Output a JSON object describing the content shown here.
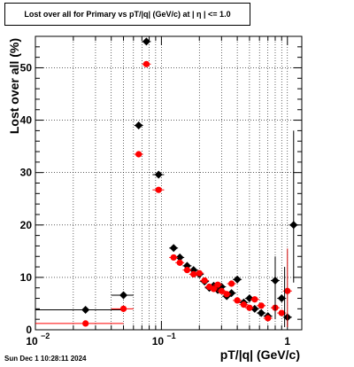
{
  "chart_data": {
    "type": "scatter",
    "title": "Lost over all for Primary vs pT/|q| (GeV/c) at |  η  | <= 1.0",
    "xlabel": "pT/|q| (GeV/c)",
    "ylabel": "Lost over all (%)",
    "x_scale": "log",
    "xlim": [
      0.01,
      1.3
    ],
    "ylim": [
      0,
      56
    ],
    "grid": true,
    "x_ticks": [
      {
        "value": 0.01,
        "label": "10",
        "exponent": "−2"
      },
      {
        "value": 0.1,
        "label": "10",
        "exponent": "−1"
      },
      {
        "value": 1,
        "label": "1",
        "exponent": ""
      }
    ],
    "y_ticks": [
      0,
      10,
      20,
      30,
      40,
      50
    ],
    "series": [
      {
        "color": "#000000",
        "marker": "diamond",
        "points": [
          {
            "x": 0.025,
            "y": 3.8,
            "xlo": 0.01,
            "xhi": 0.05
          },
          {
            "x": 0.05,
            "y": 6.6,
            "xlo": 0.04,
            "xhi": 0.06
          },
          {
            "x": 0.066,
            "y": 39.0
          },
          {
            "x": 0.076,
            "y": 55.0
          },
          {
            "x": 0.095,
            "y": 29.6,
            "xlo": 0.085,
            "xhi": 0.105
          },
          {
            "x": 0.125,
            "y": 15.6
          },
          {
            "x": 0.14,
            "y": 13.8
          },
          {
            "x": 0.16,
            "y": 12.2
          },
          {
            "x": 0.18,
            "y": 11.4
          },
          {
            "x": 0.2,
            "y": 10.6
          },
          {
            "x": 0.22,
            "y": 9.2
          },
          {
            "x": 0.24,
            "y": 8.0
          },
          {
            "x": 0.26,
            "y": 8.4
          },
          {
            "x": 0.28,
            "y": 7.6
          },
          {
            "x": 0.3,
            "y": 8.2
          },
          {
            "x": 0.33,
            "y": 6.4
          },
          {
            "x": 0.36,
            "y": 7.0
          },
          {
            "x": 0.4,
            "y": 9.6
          },
          {
            "x": 0.45,
            "y": 5.2
          },
          {
            "x": 0.5,
            "y": 6.0
          },
          {
            "x": 0.55,
            "y": 4.0
          },
          {
            "x": 0.62,
            "y": 3.2
          },
          {
            "x": 0.7,
            "y": 2.6
          },
          {
            "x": 0.8,
            "y": 9.4
          },
          {
            "x": 0.9,
            "y": 6.0
          },
          {
            "x": 1.0,
            "y": 2.4
          },
          {
            "x": 1.12,
            "y": 20.0
          }
        ]
      },
      {
        "color": "#ff0000",
        "marker": "circle",
        "points": [
          {
            "x": 0.025,
            "y": 1.2,
            "xlo": 0.01,
            "xhi": 0.05
          },
          {
            "x": 0.05,
            "y": 4.0,
            "xlo": 0.04,
            "xhi": 0.06
          },
          {
            "x": 0.066,
            "y": 33.5
          },
          {
            "x": 0.076,
            "y": 50.7
          },
          {
            "x": 0.095,
            "y": 26.7,
            "xlo": 0.085,
            "xhi": 0.105
          },
          {
            "x": 0.125,
            "y": 13.8
          },
          {
            "x": 0.14,
            "y": 12.8
          },
          {
            "x": 0.16,
            "y": 11.4
          },
          {
            "x": 0.18,
            "y": 10.6
          },
          {
            "x": 0.2,
            "y": 10.8
          },
          {
            "x": 0.22,
            "y": 9.4
          },
          {
            "x": 0.24,
            "y": 8.2
          },
          {
            "x": 0.26,
            "y": 7.8
          },
          {
            "x": 0.28,
            "y": 8.6
          },
          {
            "x": 0.3,
            "y": 7.4
          },
          {
            "x": 0.33,
            "y": 6.8
          },
          {
            "x": 0.36,
            "y": 8.8
          },
          {
            "x": 0.4,
            "y": 5.6
          },
          {
            "x": 0.45,
            "y": 4.8
          },
          {
            "x": 0.5,
            "y": 4.2
          },
          {
            "x": 0.55,
            "y": 5.8
          },
          {
            "x": 0.62,
            "y": 4.6
          },
          {
            "x": 0.7,
            "y": 2.2
          },
          {
            "x": 0.8,
            "y": 4.2
          },
          {
            "x": 0.9,
            "y": 3.2
          },
          {
            "x": 1.0,
            "y": 7.4
          }
        ]
      }
    ]
  },
  "footer": {
    "timestamp": "Sun Dec  1 10:28:11 2024"
  }
}
